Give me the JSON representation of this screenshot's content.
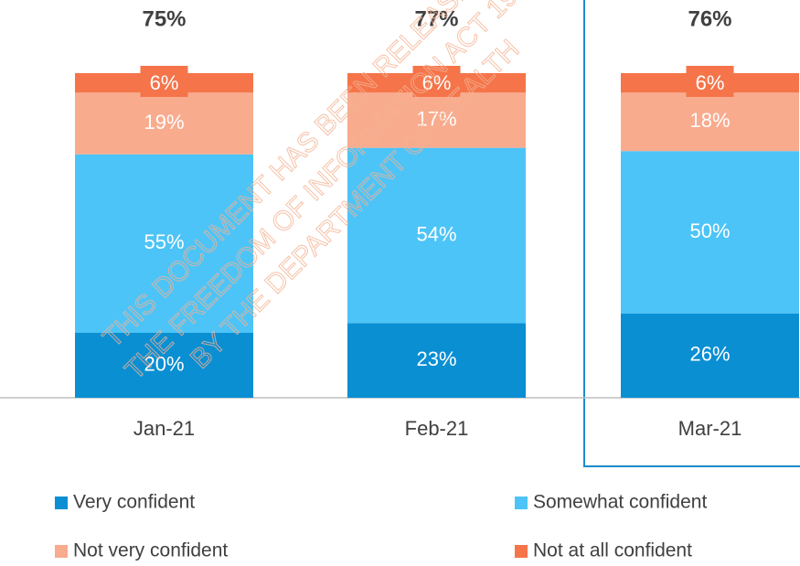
{
  "chart_data": {
    "type": "stacked_bar",
    "categories": [
      "Jan-21",
      "Feb-21",
      "Mar-21"
    ],
    "series": [
      {
        "name": "Very confident",
        "color": "#0a8fd3",
        "values": [
          20,
          23,
          26
        ],
        "value_labels": [
          "20%",
          "23%",
          "26%"
        ]
      },
      {
        "name": "Somewhat confident",
        "color": "#4dc4f7",
        "values": [
          55,
          54,
          50
        ],
        "value_labels": [
          "55%",
          "54%",
          "50%"
        ]
      },
      {
        "name": "Not very confident",
        "color": "#f9ab8e",
        "values": [
          19,
          17,
          18
        ],
        "value_labels": [
          "19%",
          "17%",
          "18%"
        ]
      },
      {
        "name": "Not at all confident",
        "color": "#f5744a",
        "values": [
          6,
          6,
          6
        ],
        "value_labels": [
          "6%",
          "6%",
          "6%"
        ]
      }
    ],
    "totals": {
      "values": [
        75,
        77,
        76
      ],
      "value_labels": [
        "75%",
        "77%",
        "76%"
      ]
    },
    "watermark": [
      "THIS DOCUMENT HAS BEEN RELEASE",
      "THE FREEDOM OF INFORMATION ACT 19",
      "BY THE DEPARTMENT OF HEALTH"
    ]
  }
}
